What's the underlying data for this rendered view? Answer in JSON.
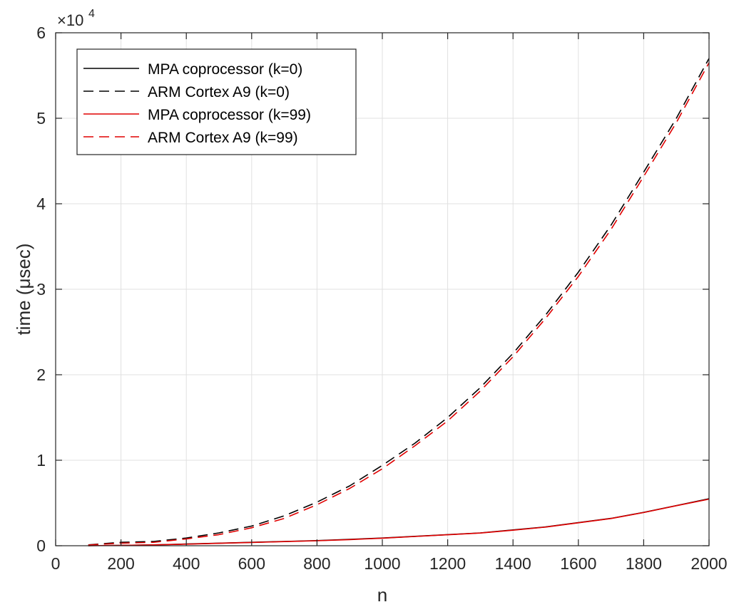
{
  "chart_data": {
    "type": "line",
    "xlabel": "n",
    "ylabel": "time (μsec)",
    "y_exponent_label": "×10",
    "y_exponent_power": "4",
    "xlim": [
      0,
      2000
    ],
    "ylim": [
      0,
      60000
    ],
    "x_ticks": [
      "0",
      "200",
      "400",
      "600",
      "800",
      "1000",
      "1200",
      "1400",
      "1600",
      "1800",
      "2000"
    ],
    "y_ticks": [
      "0",
      "1",
      "2",
      "3",
      "4",
      "5",
      "6"
    ],
    "grid": true,
    "legend_position": "top-left",
    "x": [
      100,
      200,
      300,
      400,
      500,
      600,
      700,
      800,
      900,
      1000,
      1100,
      1200,
      1300,
      1400,
      1500,
      1600,
      1700,
      1800,
      1900,
      2000
    ],
    "series": [
      {
        "name": "MPA coprocessor (k=0)",
        "color": "#000000",
        "dash": "solid",
        "values": [
          5,
          40,
          100,
          200,
          300,
          400,
          500,
          600,
          750,
          900,
          1100,
          1300,
          1500,
          1850,
          2200,
          2700,
          3200,
          3900,
          4700,
          5500
        ]
      },
      {
        "name": "ARM Cortex A9 (k=0)",
        "color": "#000000",
        "dash": "dashed",
        "values": [
          100,
          400,
          500,
          900,
          1500,
          2300,
          3500,
          5100,
          7000,
          9400,
          12000,
          15000,
          18500,
          22500,
          27000,
          32000,
          37500,
          43700,
          50000,
          57000
        ]
      },
      {
        "name": "MPA coprocessor (k=99)",
        "color": "#e00000",
        "dash": "solid",
        "values": [
          5,
          40,
          100,
          180,
          280,
          380,
          480,
          580,
          720,
          880,
          1080,
          1280,
          1480,
          1820,
          2180,
          2680,
          3180,
          3880,
          4680,
          5450
        ]
      },
      {
        "name": "ARM Cortex A9 (k=99)",
        "color": "#e00000",
        "dash": "dashed",
        "values": [
          80,
          300,
          400,
          800,
          1300,
          2100,
          3200,
          4800,
          6700,
          9000,
          11700,
          14600,
          18100,
          22100,
          26600,
          31500,
          37000,
          43200,
          49500,
          56500
        ]
      }
    ]
  }
}
